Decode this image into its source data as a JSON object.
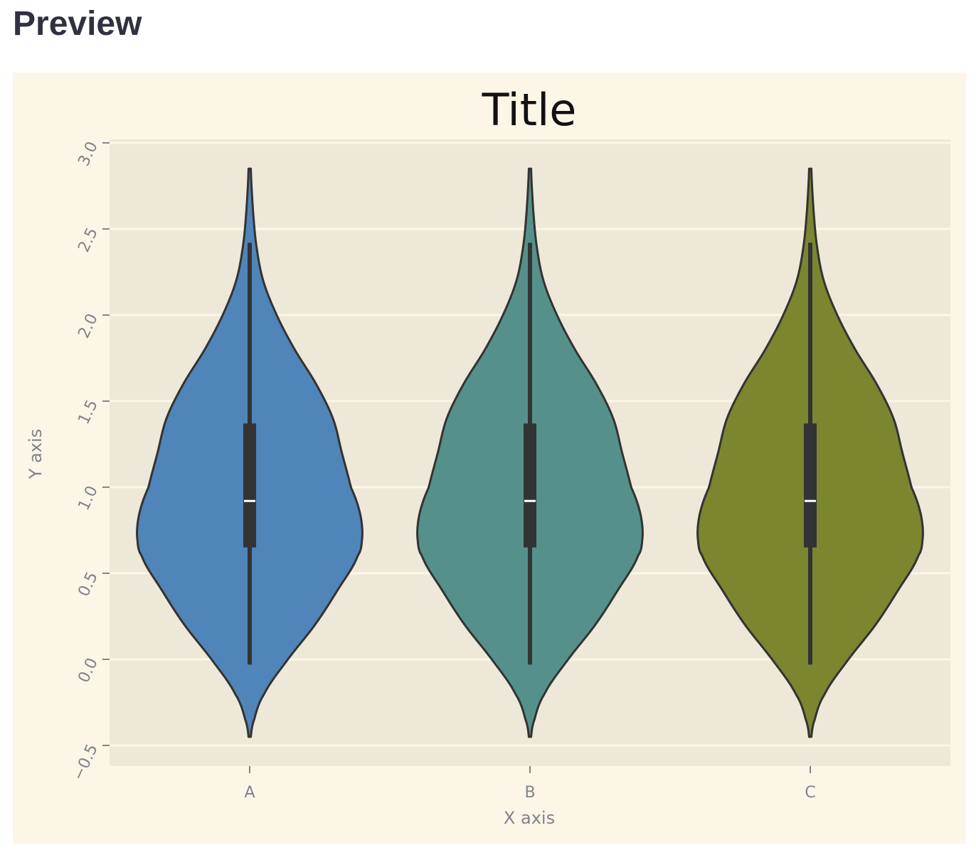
{
  "page": {
    "heading": "Preview"
  },
  "chart_data": {
    "type": "violin",
    "title": "Title",
    "xlabel": "X axis",
    "ylabel": "Y axis",
    "ylim": [
      -0.62,
      3.02
    ],
    "yticks": [
      -0.5,
      0.0,
      0.5,
      1.0,
      1.5,
      2.0,
      2.5,
      3.0
    ],
    "grid": true,
    "categories": [
      "A",
      "B",
      "C"
    ],
    "colors": [
      "#5085b9",
      "#55918a",
      "#7b862f"
    ],
    "colors_meaning": "violin fill per category",
    "background": {
      "figure": "#fcf6e6",
      "axes": "#eee8d8",
      "grid": "#fcf6e6"
    },
    "series": [
      {
        "category": "A",
        "min": -0.03,
        "q1": 0.65,
        "median": 0.92,
        "q3": 1.37,
        "max": 2.42,
        "density_extent": [
          -0.45,
          2.85
        ],
        "density_profile": [
          [
            -0.45,
            0.01
          ],
          [
            -0.35,
            0.04
          ],
          [
            -0.2,
            0.13
          ],
          [
            0.0,
            0.34
          ],
          [
            0.2,
            0.58
          ],
          [
            0.4,
            0.78
          ],
          [
            0.6,
            0.96
          ],
          [
            0.7,
            1.0
          ],
          [
            0.8,
            0.995
          ],
          [
            0.9,
            0.96
          ],
          [
            1.0,
            0.9
          ],
          [
            1.2,
            0.82
          ],
          [
            1.4,
            0.74
          ],
          [
            1.6,
            0.59
          ],
          [
            1.8,
            0.4
          ],
          [
            2.0,
            0.24
          ],
          [
            2.2,
            0.12
          ],
          [
            2.4,
            0.06
          ],
          [
            2.6,
            0.03
          ],
          [
            2.85,
            0.01
          ]
        ]
      },
      {
        "category": "B",
        "min": -0.03,
        "q1": 0.65,
        "median": 0.92,
        "q3": 1.37,
        "max": 2.42,
        "density_extent": [
          -0.45,
          2.85
        ],
        "density_profile": [
          [
            -0.45,
            0.01
          ],
          [
            -0.35,
            0.04
          ],
          [
            -0.2,
            0.13
          ],
          [
            0.0,
            0.34
          ],
          [
            0.2,
            0.58
          ],
          [
            0.4,
            0.78
          ],
          [
            0.6,
            0.96
          ],
          [
            0.7,
            1.0
          ],
          [
            0.8,
            0.995
          ],
          [
            0.9,
            0.96
          ],
          [
            1.0,
            0.9
          ],
          [
            1.2,
            0.82
          ],
          [
            1.4,
            0.74
          ],
          [
            1.6,
            0.59
          ],
          [
            1.8,
            0.4
          ],
          [
            2.0,
            0.24
          ],
          [
            2.2,
            0.12
          ],
          [
            2.4,
            0.06
          ],
          [
            2.6,
            0.03
          ],
          [
            2.85,
            0.01
          ]
        ]
      },
      {
        "category": "C",
        "min": -0.03,
        "q1": 0.65,
        "median": 0.92,
        "q3": 1.37,
        "max": 2.42,
        "density_extent": [
          -0.45,
          2.85
        ],
        "density_profile": [
          [
            -0.45,
            0.01
          ],
          [
            -0.35,
            0.04
          ],
          [
            -0.2,
            0.13
          ],
          [
            0.0,
            0.34
          ],
          [
            0.2,
            0.58
          ],
          [
            0.4,
            0.78
          ],
          [
            0.6,
            0.96
          ],
          [
            0.7,
            1.0
          ],
          [
            0.8,
            0.995
          ],
          [
            0.9,
            0.96
          ],
          [
            1.0,
            0.9
          ],
          [
            1.2,
            0.82
          ],
          [
            1.4,
            0.74
          ],
          [
            1.6,
            0.59
          ],
          [
            1.8,
            0.4
          ],
          [
            2.0,
            0.24
          ],
          [
            2.2,
            0.12
          ],
          [
            2.4,
            0.06
          ],
          [
            2.6,
            0.03
          ],
          [
            2.85,
            0.01
          ]
        ]
      }
    ]
  }
}
